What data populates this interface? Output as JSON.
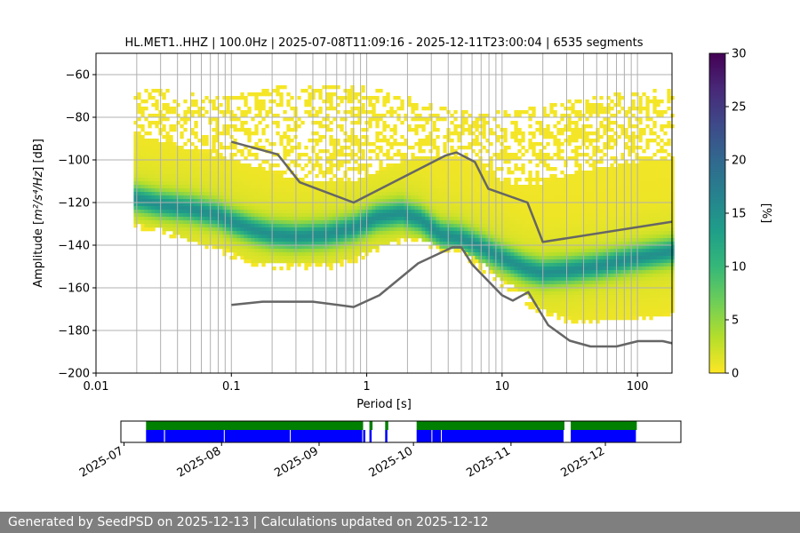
{
  "chart_data": {
    "type": "heatmap",
    "title": "HL.MET1..HHZ | 100.0Hz | 2025-07-08T11:09:16 - 2025-12-11T23:00:04 | 6535 segments",
    "xlabel": "Period [s]",
    "ylabel_prefix": "Amplitude [",
    "ylabel_math": "m²/s⁴/Hz",
    "ylabel_suffix": "] [dB]",
    "x_scale": "log",
    "xlim": [
      0.01,
      180
    ],
    "ylim": [
      -200,
      -50
    ],
    "x_ticks": [
      {
        "value": 0.01,
        "label": "0.01"
      },
      {
        "value": 0.1,
        "label": "0.1"
      },
      {
        "value": 1,
        "label": "1"
      },
      {
        "value": 10,
        "label": "10"
      },
      {
        "value": 100,
        "label": "100"
      }
    ],
    "y_ticks": [
      {
        "value": -60,
        "label": "−60"
      },
      {
        "value": -80,
        "label": "−80"
      },
      {
        "value": -100,
        "label": "−100"
      },
      {
        "value": -120,
        "label": "−120"
      },
      {
        "value": -140,
        "label": "−140"
      },
      {
        "value": -160,
        "label": "−160"
      },
      {
        "value": -180,
        "label": "−180"
      },
      {
        "value": -200,
        "label": "−200"
      }
    ],
    "grid": true,
    "colorbar": {
      "label": "[%]",
      "range": [
        0,
        30
      ],
      "ticks": [
        {
          "value": 0,
          "label": "0"
        },
        {
          "value": 5,
          "label": "5"
        },
        {
          "value": 10,
          "label": "10"
        },
        {
          "value": 15,
          "label": "15"
        },
        {
          "value": 20,
          "label": "20"
        },
        {
          "value": 25,
          "label": "25"
        },
        {
          "value": 30,
          "label": "30"
        }
      ],
      "colors": [
        "#fde725",
        "#b5de2b",
        "#6ece58",
        "#35b779",
        "#1f9e89",
        "#26828e",
        "#31688e",
        "#3e4989",
        "#482878",
        "#440154"
      ]
    },
    "mode_curve": {
      "x": [
        0.019,
        0.03,
        0.05,
        0.08,
        0.1,
        0.15,
        0.2,
        0.3,
        0.5,
        0.8,
        1.2,
        1.8,
        2.5,
        3.5,
        5,
        7,
        10,
        15,
        20,
        30,
        50,
        100,
        180
      ],
      "y": [
        -118,
        -121,
        -123,
        -126,
        -129,
        -133,
        -135,
        -136,
        -135,
        -132,
        -127,
        -125,
        -128,
        -135,
        -137,
        -141,
        -146,
        -151,
        -153,
        -152,
        -150,
        -146,
        -143
      ]
    },
    "density_bounds": {
      "x": [
        0.019,
        0.03,
        0.05,
        0.08,
        0.1,
        0.15,
        0.2,
        0.3,
        0.5,
        0.8,
        1.2,
        1.8,
        2.5,
        3.5,
        5,
        7,
        10,
        15,
        20,
        30,
        50,
        100,
        180
      ],
      "upper": [
        -88,
        -91,
        -95,
        -98,
        -100,
        -103,
        -106,
        -109,
        -110,
        -110,
        -106,
        -101,
        -98,
        -98,
        -100,
        -104,
        -110,
        -112,
        -111,
        -107,
        -104,
        -101,
        -100
      ],
      "lower": [
        -130,
        -132,
        -138,
        -141,
        -143,
        -148,
        -148,
        -149,
        -149,
        -146,
        -141,
        -137,
        -137,
        -141,
        -142,
        -148,
        -156,
        -163,
        -170,
        -174,
        -175,
        -174,
        -172
      ],
      "outer_upper": [
        -66,
        -67,
        -69,
        -70,
        -70,
        -68,
        -66,
        -65,
        -65,
        -65,
        -67,
        -70,
        -72,
        -74,
        -77,
        -78,
        -77,
        -76,
        -75,
        -72,
        -70,
        -68,
        -66
      ],
      "outer_lower": [
        -132,
        -134,
        -140,
        -144,
        -146,
        -150,
        -151,
        -152,
        -152,
        -148,
        -143,
        -139,
        -139,
        -143,
        -145,
        -152,
        -160,
        -168,
        -173,
        -176,
        -176,
        -175,
        -173
      ]
    },
    "reference_high": {
      "name": "",
      "x": [
        0.1,
        0.22,
        0.32,
        0.8,
        3.8,
        4.6,
        6.3,
        7.9,
        15.4,
        20,
        180
      ],
      "y": [
        -91.5,
        -97.4,
        -110.5,
        -120,
        -98,
        -96.5,
        -101,
        -113.5,
        -120,
        -138.5,
        -129
      ]
    },
    "reference_low": {
      "name": "",
      "x": [
        0.1,
        0.17,
        0.4,
        0.8,
        1.24,
        2.4,
        4.3,
        5.0,
        6.0,
        10,
        12,
        15.6,
        21.9,
        31.6,
        45,
        70,
        101,
        154,
        180
      ],
      "y": [
        -168,
        -166.5,
        -166.5,
        -169,
        -163.5,
        -148.5,
        -141,
        -141,
        -149,
        -163.5,
        -166,
        -162,
        -177.5,
        -184.8,
        -187.5,
        -187.5,
        -185,
        -185,
        -186
      ]
    }
  },
  "availability": {
    "tick_labels": [
      "2025-07",
      "2025-08",
      "2025-09",
      "2025-10",
      "2025-11",
      "2025-12"
    ],
    "tick_dates": [
      "2025-07-01",
      "2025-08-01",
      "2025-09-01",
      "2025-10-01",
      "2025-11-01",
      "2025-12-01"
    ],
    "range": [
      "2025-06-30",
      "2025-12-25"
    ],
    "data_color": "#0000ff",
    "processed_color": "#008000",
    "data_segments": [
      [
        "2025-07-08",
        "2025-07-14"
      ],
      [
        "2025-07-14",
        "2025-08-02"
      ],
      [
        "2025-08-02",
        "2025-08-23"
      ],
      [
        "2025-08-23",
        "2025-09-15"
      ],
      [
        "2025-09-15",
        "2025-09-16"
      ],
      [
        "2025-09-17",
        "2025-09-18"
      ],
      [
        "2025-09-22",
        "2025-09-23"
      ],
      [
        "2025-10-02",
        "2025-10-07"
      ],
      [
        "2025-10-07",
        "2025-10-10"
      ],
      [
        "2025-10-10",
        "2025-11-18"
      ],
      [
        "2025-11-20",
        "2025-12-11"
      ]
    ],
    "processed_segments": [
      [
        "2025-07-08",
        "2025-09-15"
      ],
      [
        "2025-09-17",
        "2025-09-18"
      ],
      [
        "2025-09-22",
        "2025-09-23"
      ],
      [
        "2025-10-02",
        "2025-11-18"
      ],
      [
        "2025-11-20",
        "2025-12-11"
      ]
    ]
  },
  "footer": {
    "text": "Generated by SeedPSD on 2025-12-13 | Calculations updated on 2025-12-12"
  }
}
